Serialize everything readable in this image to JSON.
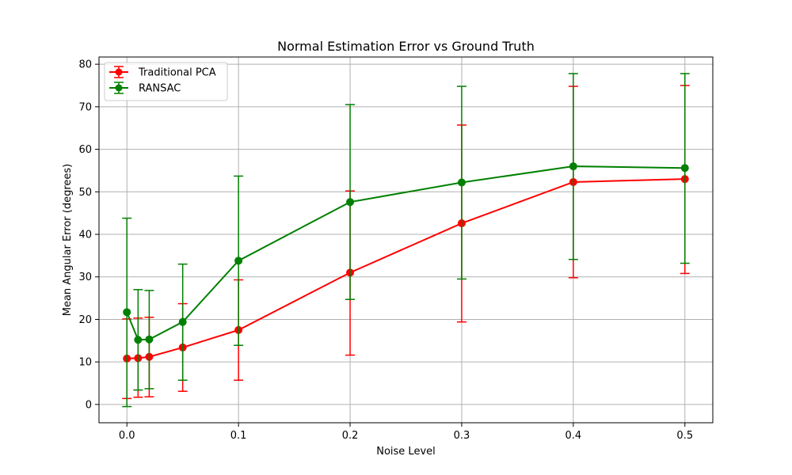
{
  "chart_data": {
    "type": "line",
    "title": "Normal Estimation Error vs Ground Truth",
    "xlabel": "Noise Level",
    "ylabel": "Mean Angular Error (degrees)",
    "x": [
      0.0,
      0.01,
      0.02,
      0.05,
      0.1,
      0.2,
      0.3,
      0.4,
      0.5
    ],
    "xticks": [
      0.0,
      0.1,
      0.2,
      0.3,
      0.4,
      0.5
    ],
    "xtick_labels": [
      "0.0",
      "0.1",
      "0.2",
      "0.3",
      "0.4",
      "0.5"
    ],
    "yticks": [
      0,
      10,
      20,
      30,
      40,
      50,
      60,
      70,
      80
    ],
    "ytick_labels": [
      "0",
      "10",
      "20",
      "30",
      "40",
      "50",
      "60",
      "70",
      "80"
    ],
    "xlim": [
      -0.025,
      0.525
    ],
    "ylim": [
      -4.3,
      81.7
    ],
    "grid": true,
    "legend_position": "top-left",
    "series": [
      {
        "name": "Traditional PCA",
        "color": "#ff0000",
        "marker": "circle",
        "values": [
          10.8,
          10.9,
          11.2,
          13.4,
          17.5,
          31.0,
          42.6,
          52.3,
          53.0
        ],
        "err_low": [
          1.4,
          1.7,
          1.8,
          3.1,
          5.7,
          11.6,
          19.4,
          29.8,
          30.8
        ],
        "err_high": [
          20.1,
          20.3,
          20.5,
          23.7,
          29.3,
          50.2,
          65.7,
          74.8,
          75.0
        ]
      },
      {
        "name": "RANSAC",
        "color": "#008000",
        "marker": "circle",
        "values": [
          21.7,
          15.2,
          15.3,
          19.4,
          33.8,
          47.6,
          52.2,
          56.0,
          55.6
        ],
        "err_low": [
          -0.5,
          3.4,
          3.7,
          5.7,
          13.9,
          24.7,
          29.5,
          34.1,
          33.2
        ],
        "err_high": [
          43.8,
          27.0,
          26.8,
          33.0,
          53.7,
          70.5,
          74.8,
          77.8,
          77.8
        ]
      }
    ]
  }
}
